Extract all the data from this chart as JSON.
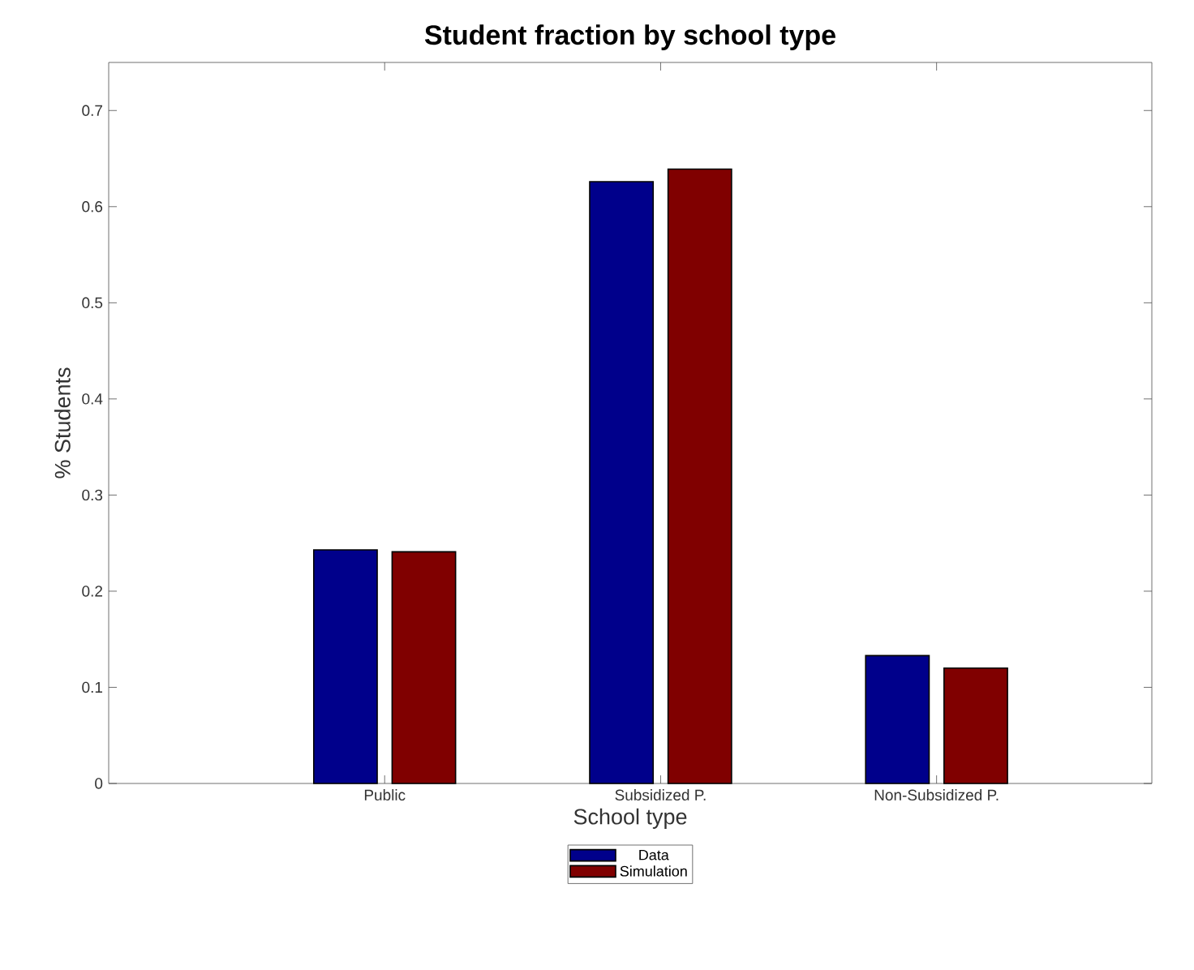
{
  "chart_data": {
    "type": "bar",
    "title": "Student fraction by school type",
    "xlabel": "School type",
    "ylabel": "% Students",
    "categories": [
      "Public",
      "Subsidized P.",
      "Non-Subsidized P."
    ],
    "series": [
      {
        "name": "Data",
        "color": "#00008b",
        "values": [
          0.243,
          0.626,
          0.133
        ]
      },
      {
        "name": "Simulation",
        "color": "#800000",
        "values": [
          0.241,
          0.639,
          0.12
        ]
      }
    ],
    "ylim": [
      0,
      0.75
    ],
    "yticks": [
      0,
      0.1,
      0.2,
      0.3,
      0.4,
      0.5,
      0.6,
      0.7
    ],
    "grid": false,
    "legend": "bottom"
  }
}
